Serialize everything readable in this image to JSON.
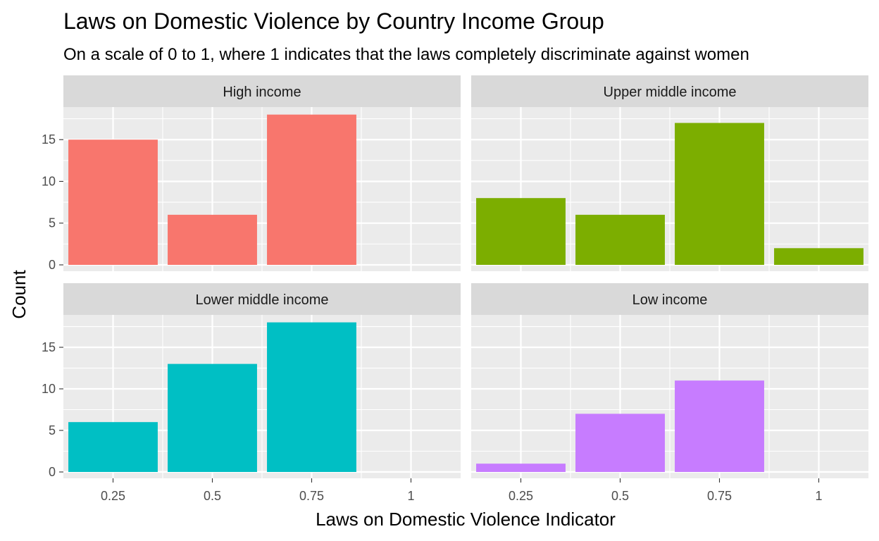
{
  "chart_data": {
    "type": "bar",
    "title": "Laws on Domestic Violence by Country Income Group",
    "subtitle": "On a scale of 0 to 1, where 1 indicates that the laws completely discriminate against women",
    "xlabel": "Laws on Domestic Violence Indicator",
    "ylabel": "Count",
    "x_tick_labels": [
      "0.25",
      "0.5",
      "0.75",
      "1"
    ],
    "y_tick_labels": [
      "0",
      "5",
      "10",
      "15"
    ],
    "x_values": [
      0.25,
      0.5,
      0.75,
      1
    ],
    "xlim": [
      0.125,
      1.125
    ],
    "ylim": [
      0,
      18.9
    ],
    "grid": true,
    "legend": "none",
    "panels": [
      {
        "name": "High income",
        "color": "#F8766D",
        "values": [
          15,
          6,
          18,
          0
        ]
      },
      {
        "name": "Upper middle income",
        "color": "#7CAE00",
        "values": [
          8,
          6,
          17,
          2
        ]
      },
      {
        "name": "Lower middle income",
        "color": "#00BFC4",
        "values": [
          6,
          13,
          18,
          0
        ]
      },
      {
        "name": "Low income",
        "color": "#C77CFF",
        "values": [
          1,
          7,
          11,
          0
        ]
      }
    ]
  }
}
